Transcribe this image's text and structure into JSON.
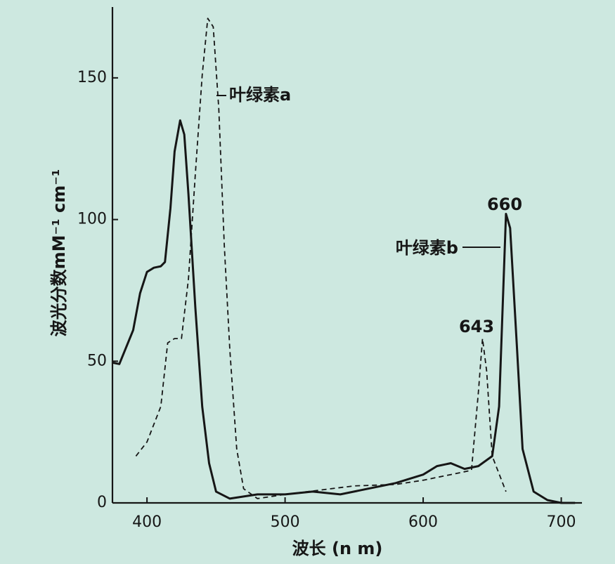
{
  "chart_data": {
    "type": "line",
    "x_label": "波长 (n m)",
    "y_label": "波光分数mM⁻¹ cm⁻¹",
    "xlim": [
      375,
      715
    ],
    "ylim": [
      0,
      175
    ],
    "xticks": [
      400,
      500,
      600,
      700
    ],
    "yticks": [
      0,
      50,
      100,
      150
    ],
    "series": [
      {
        "name": "叶绿素a",
        "color": "#161616",
        "linestyle": "dashed",
        "x": [
          392,
          400,
          410,
          415,
          420,
          425,
          430,
          435,
          440,
          444,
          448,
          452,
          456,
          460,
          465,
          470,
          480,
          500,
          550,
          580,
          600,
          620,
          635,
          640,
          643,
          646,
          650,
          660
        ],
        "values": [
          16.5,
          21.5,
          34,
          56.5,
          58,
          58,
          79,
          116,
          151,
          171,
          168,
          139,
          91,
          54,
          19,
          5,
          1.5,
          3,
          6,
          6.5,
          8,
          10,
          11.5,
          39,
          58,
          46.5,
          16.5,
          4
        ]
      },
      {
        "name": "叶绿素b",
        "color": "#161616",
        "linestyle": "solid",
        "x": [
          375,
          380,
          390,
          395,
          400,
          405,
          410,
          413,
          417,
          420,
          424,
          427,
          430,
          435,
          440,
          445,
          450,
          460,
          480,
          500,
          520,
          540,
          560,
          580,
          600,
          610,
          620,
          630,
          640,
          650,
          655,
          660,
          663,
          668,
          672,
          680,
          690,
          700,
          710
        ],
        "values": [
          49.5,
          49,
          61,
          74,
          81.5,
          83,
          83.5,
          85,
          104,
          124,
          135,
          130,
          109,
          69,
          34,
          14,
          4,
          1.5,
          3,
          3,
          4,
          3,
          5,
          7,
          10,
          13,
          14,
          12,
          13,
          16.5,
          34,
          102,
          97,
          54,
          19,
          4,
          1,
          0,
          0
        ]
      }
    ],
    "annotations": [
      "660",
      "643"
    ]
  }
}
